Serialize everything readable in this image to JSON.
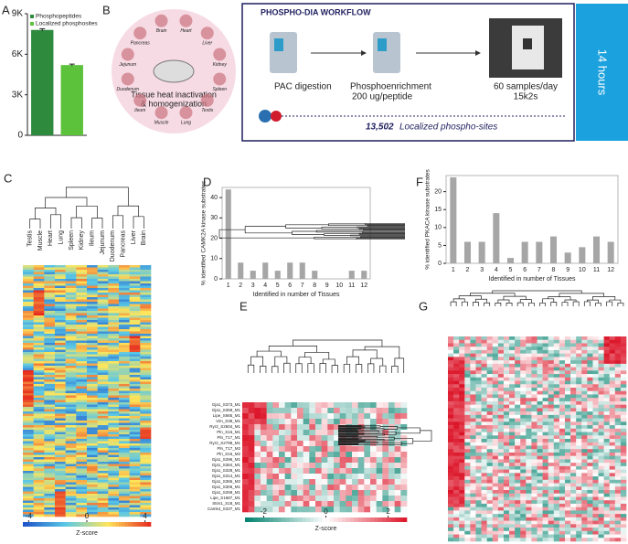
{
  "panel_labels": [
    "A",
    "B",
    "C",
    "D",
    "E",
    "F",
    "G"
  ],
  "chart_data": [
    {
      "type": "bar",
      "categories": [
        "Phosphopeptides",
        "Localized phosphosites"
      ],
      "values": [
        7800,
        5200
      ],
      "errors": [
        90,
        70
      ],
      "colors": [
        "#2e8b3e",
        "#5cc23c"
      ],
      "ylim": [
        0,
        9000
      ],
      "yticks": [
        0,
        {
          "value": 3000,
          "label": "3K"
        },
        {
          "value": 6000,
          "label": "6K"
        },
        {
          "value": 9000,
          "label": "9K"
        }
      ],
      "legend": "top-left"
    },
    {
      "type": "bar",
      "y_label": "% identified CAMK2A kinase substrates",
      "x_label": "Identified in number of Tissues",
      "categories": [
        "1",
        "2",
        "3",
        "4",
        "5",
        "6",
        "7",
        "8",
        "9",
        "10",
        "11",
        "12"
      ],
      "values": [
        44,
        8,
        4,
        8,
        4,
        8,
        8,
        4,
        0,
        0,
        4,
        4
      ],
      "color": "#a6a6a6",
      "ylim": [
        0,
        45
      ],
      "yticks": [
        0,
        10,
        20,
        30,
        40
      ]
    },
    {
      "type": "bar",
      "y_label": "% identified PKACA kinase substrates",
      "x_label": "Identified in number of Tissues",
      "categories": [
        "1",
        "2",
        "3",
        "4",
        "5",
        "6",
        "7",
        "8",
        "9",
        "10",
        "11",
        "12"
      ],
      "values": [
        24,
        6,
        6,
        14,
        1.5,
        6,
        6,
        7.5,
        3,
        4.5,
        7.5,
        6
      ],
      "color": "#a6a6a6",
      "ylim": [
        0,
        24.5
      ],
      "yticks": [
        0,
        5,
        10,
        15,
        20
      ]
    }
  ],
  "workflow": {
    "title": "PHOSPHO-DIA WORKFLOW",
    "organs": [
      "Pancreas",
      "Brain",
      "Heart",
      "Liver",
      "Kidney",
      "Spleen",
      "Testis",
      "Lung",
      "Muscle",
      "Ileum",
      "Duodenum",
      "Jejunum"
    ],
    "prep": [
      "Tissue heat inactivation",
      "& homogenization"
    ],
    "step1": "PAC digestion",
    "step2": [
      "Phosphoenrichment",
      "200 ug/peptide"
    ],
    "step3": [
      "60 samples/day",
      "15k2s"
    ],
    "result_number": "13,502",
    "result_text": "Localized phospho-sites",
    "duration": "14 hours"
  },
  "heatmap_c": {
    "columns": [
      "Testis",
      "Muscle",
      "Heart",
      "Lung",
      "Spleen",
      "Kidney",
      "Ileum",
      "Jejunum",
      "Duodenum",
      "Pancreas",
      "Liver",
      "Brain"
    ],
    "colorbar_ticks": [
      -4,
      0,
      4
    ],
    "colorbar_lim": [
      -4.4,
      4.4
    ],
    "colorbar_label": "Z-score"
  },
  "heatmap_e": {
    "rows": [
      "Gja1_S373_M1",
      "Gja1_S368_M1",
      "Lipe_S665_M1",
      "Vim_S38_M1",
      "Ryr2_S2604_M1",
      "Pln_S16_M1",
      "Pln_T17_M1",
      "Ryr2_S2798_M1",
      "Pln_T17_M2",
      "Pln_S16_M2",
      "Gja1_S296_M1",
      "Gja1_S364_M1",
      "Gja1_S328_M1",
      "Gja1_S314_M1",
      "Gja1_S365_M2",
      "Gja1_S306_M1",
      "Gja1_S259_M1",
      "Lipe_S1687_M1",
      "Stim1_S18_M1",
      "Camk4_S337_M1"
    ],
    "colorbar_ticks": [
      -2,
      0,
      2
    ],
    "colorbar_lim": [
      -2.6,
      2.6
    ],
    "colorbar_label": "Z-score"
  }
}
